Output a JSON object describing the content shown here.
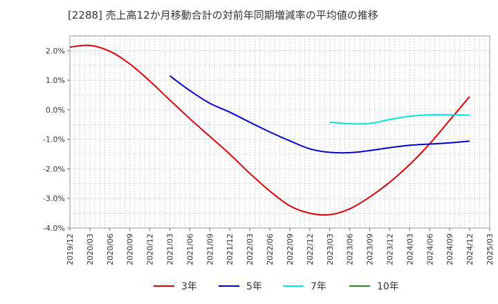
{
  "chart_data": {
    "type": "line",
    "title": "[2288]  売上高12か月移動合計の対前年同期増減率の平均値の推移",
    "xlabel": "",
    "ylabel": "",
    "ylim": [
      -4.0,
      2.5
    ],
    "grid": true,
    "legend_placement": "bottom",
    "x_ticks": [
      "2019/12",
      "2020/03",
      "2020/06",
      "2020/09",
      "2020/12",
      "2021/03",
      "2021/06",
      "2021/09",
      "2021/12",
      "2022/03",
      "2022/06",
      "2022/09",
      "2022/12",
      "2023/03",
      "2023/06",
      "2023/09",
      "2023/12",
      "2024/03",
      "2024/06",
      "2024/09",
      "2024/12",
      "2025/03"
    ],
    "y_ticks": [
      {
        "value": 2.0,
        "label": "2.0%"
      },
      {
        "value": 1.0,
        "label": "1.0%"
      },
      {
        "value": 0.0,
        "label": "0.0%"
      },
      {
        "value": -1.0,
        "label": "-1.0%"
      },
      {
        "value": -2.0,
        "label": "-2.0%"
      },
      {
        "value": -3.0,
        "label": "-3.0%"
      },
      {
        "value": -4.0,
        "label": "-4.0%"
      }
    ],
    "series": [
      {
        "name": "3年",
        "color": "#dd0000",
        "points": [
          [
            "2019/12",
            2.12
          ],
          [
            "2020/03",
            2.18
          ],
          [
            "2020/06",
            1.98
          ],
          [
            "2020/09",
            1.55
          ],
          [
            "2020/12",
            0.97
          ],
          [
            "2021/03",
            0.33
          ],
          [
            "2021/06",
            -0.3
          ],
          [
            "2021/09",
            -0.9
          ],
          [
            "2021/12",
            -1.5
          ],
          [
            "2022/03",
            -2.15
          ],
          [
            "2022/06",
            -2.75
          ],
          [
            "2022/09",
            -3.25
          ],
          [
            "2022/12",
            -3.5
          ],
          [
            "2023/03",
            -3.55
          ],
          [
            "2023/06",
            -3.35
          ],
          [
            "2023/09",
            -2.95
          ],
          [
            "2023/12",
            -2.45
          ],
          [
            "2024/03",
            -1.85
          ],
          [
            "2024/06",
            -1.15
          ],
          [
            "2024/09",
            -0.35
          ],
          [
            "2024/12",
            0.45
          ]
        ]
      },
      {
        "name": "5年",
        "color": "#0000cc",
        "points": [
          [
            "2021/03",
            1.15
          ],
          [
            "2021/06",
            0.65
          ],
          [
            "2021/09",
            0.22
          ],
          [
            "2021/12",
            -0.08
          ],
          [
            "2022/03",
            -0.42
          ],
          [
            "2022/06",
            -0.75
          ],
          [
            "2022/09",
            -1.05
          ],
          [
            "2022/12",
            -1.32
          ],
          [
            "2023/03",
            -1.44
          ],
          [
            "2023/06",
            -1.45
          ],
          [
            "2023/09",
            -1.38
          ],
          [
            "2023/12",
            -1.28
          ],
          [
            "2024/03",
            -1.2
          ],
          [
            "2024/06",
            -1.16
          ],
          [
            "2024/09",
            -1.12
          ],
          [
            "2024/12",
            -1.06
          ]
        ]
      },
      {
        "name": "7年",
        "color": "#00e5e5",
        "points": [
          [
            "2023/03",
            -0.42
          ],
          [
            "2023/06",
            -0.47
          ],
          [
            "2023/09",
            -0.46
          ],
          [
            "2023/12",
            -0.33
          ],
          [
            "2024/03",
            -0.22
          ],
          [
            "2024/06",
            -0.17
          ],
          [
            "2024/09",
            -0.17
          ],
          [
            "2024/12",
            -0.18
          ]
        ]
      },
      {
        "name": "10年",
        "color": "#228b22",
        "points": []
      }
    ]
  }
}
